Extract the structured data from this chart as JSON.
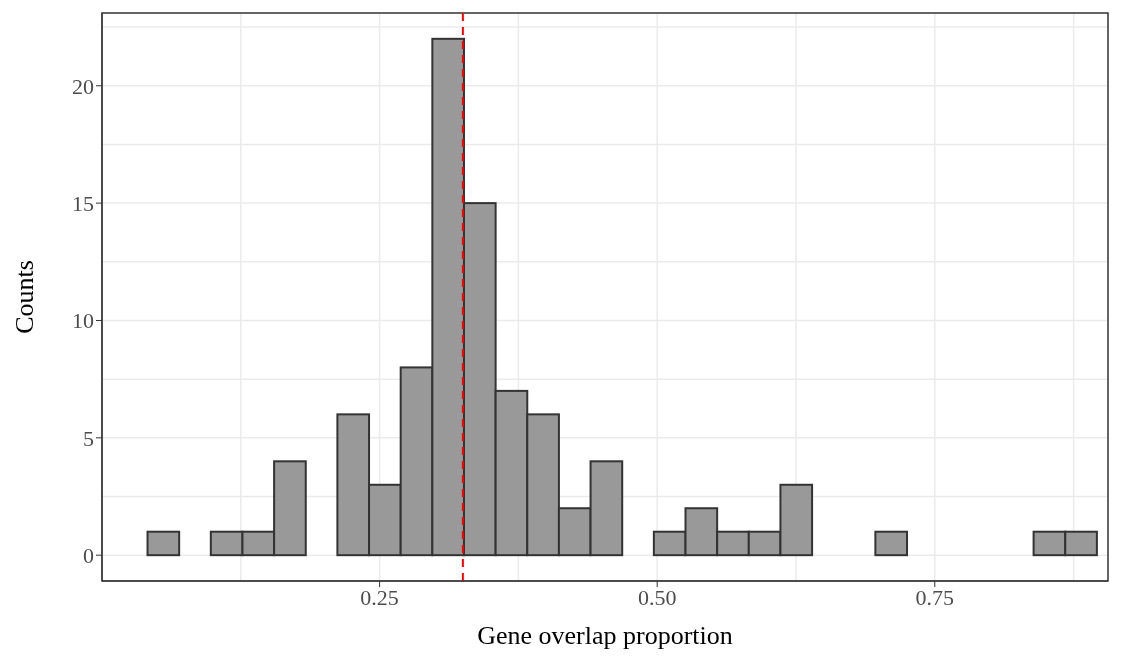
{
  "chart_data": {
    "type": "histogram",
    "xlabel": "Gene overlap proportion",
    "ylabel": "Counts",
    "bins": [
      0.041,
      0.0695,
      0.098,
      0.1265,
      0.155,
      0.1835,
      0.212,
      0.2405,
      0.269,
      0.2975,
      0.326,
      0.3545,
      0.383,
      0.4115,
      0.44,
      0.4685,
      0.497,
      0.5255,
      0.554,
      0.5825,
      0.611,
      0.6395,
      0.668,
      0.6965,
      0.725,
      0.7535,
      0.782,
      0.8105,
      0.839,
      0.8675,
      0.896
    ],
    "values": [
      1,
      0,
      1,
      1,
      4,
      0,
      6,
      3,
      8,
      22,
      15,
      7,
      6,
      2,
      4,
      0,
      1,
      2,
      1,
      1,
      3,
      0,
      0,
      1,
      0,
      0,
      0,
      0,
      1,
      1
    ],
    "color": "#999999",
    "xlim": [
      0,
      0.906
    ],
    "xticks": [
      {
        "value": 0.25,
        "label": "0.25"
      },
      {
        "value": 0.5,
        "label": "0.50"
      },
      {
        "value": 0.75,
        "label": "0.75"
      }
    ],
    "ylim": [
      -1.1,
      23.1
    ],
    "yticks": [
      0,
      5,
      10,
      15,
      20
    ],
    "grid": true,
    "ref_lines": [
      {
        "axis": "x",
        "value": 0.325,
        "color": "#ff0000",
        "line_style": "dashed"
      }
    ]
  }
}
